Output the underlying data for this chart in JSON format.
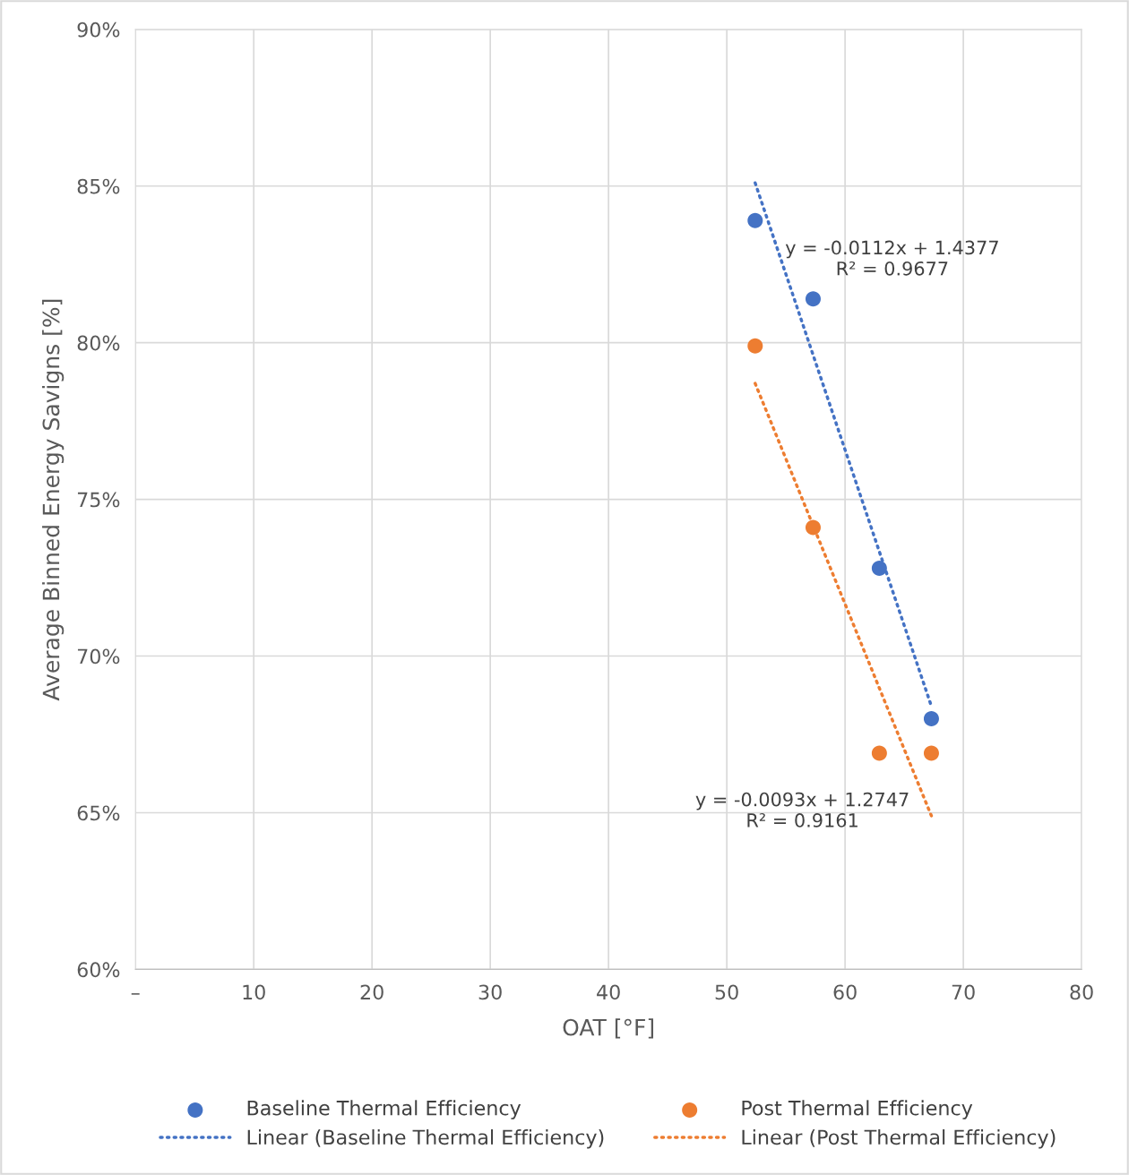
{
  "chart_data": {
    "type": "scatter",
    "xlabel": "OAT [°F]",
    "ylabel": "Average Binned Energy Savigns [%]",
    "xlim": [
      0,
      80
    ],
    "xticks": [
      {
        "value": 0,
        "label": "–"
      },
      10,
      20,
      30,
      40,
      50,
      60,
      70,
      80
    ],
    "ylim": [
      60,
      90
    ],
    "yticks": [
      {
        "value": 60,
        "label": "60%"
      },
      {
        "value": 65,
        "label": "65%"
      },
      {
        "value": 70,
        "label": "70%"
      },
      {
        "value": 75,
        "label": "75%"
      },
      {
        "value": 80,
        "label": "80%"
      },
      {
        "value": 85,
        "label": "85%"
      },
      {
        "value": 90,
        "label": "90%"
      }
    ],
    "grid": true,
    "legend": "bottom",
    "series": [
      {
        "name": "Baseline Thermal Efficiency",
        "color": "#4472c4",
        "marker": "circle",
        "x": [
          52.4,
          57.3,
          62.9,
          67.3
        ],
        "values": [
          83.9,
          81.4,
          72.8,
          68.0
        ]
      },
      {
        "name": "Post Thermal Efficiency",
        "color": "#ed7d31",
        "marker": "circle",
        "x": [
          52.4,
          57.3,
          62.9,
          67.3
        ],
        "values": [
          79.9,
          74.1,
          66.9,
          66.9
        ]
      },
      {
        "name": "Linear (Baseline Thermal Efficiency)",
        "color": "#4472c4",
        "type": "line",
        "line_style": "dotted",
        "x": [
          52.4,
          67.3
        ],
        "values": [
          85.1,
          68.4
        ]
      },
      {
        "name": "Linear (Post Thermal Efficiency)",
        "color": "#ed7d31",
        "type": "line",
        "line_style": "dotted",
        "x": [
          52.4,
          67.3
        ],
        "values": [
          78.7,
          64.9
        ]
      }
    ],
    "annotations": [
      "y = -0.0112x + 1.4377\nR² = 0.9677",
      "y = -0.0093x + 1.2747\nR² = 0.9161"
    ]
  }
}
